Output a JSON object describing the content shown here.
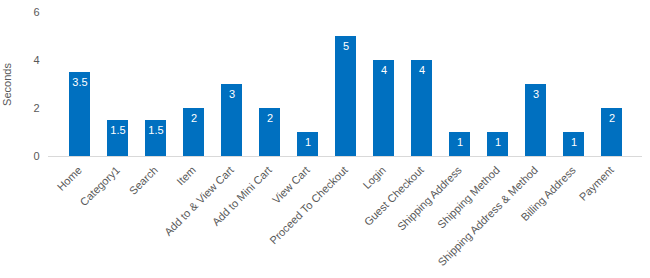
{
  "chart_data": {
    "type": "bar",
    "y_label": "Seconds",
    "categories": [
      "Home",
      "Category1",
      "Search",
      "Item",
      "Add to & View Cart",
      "Add to Mini Cart",
      "View Cart",
      "Proceed To Checkout",
      "Login",
      "Guest Checkout",
      "Shipping Address",
      "Shipping Method",
      "Shipping Address & Method",
      "Billing Address",
      "Payment"
    ],
    "values": [
      3.5,
      1.5,
      1.5,
      2,
      3,
      2,
      1,
      5,
      4,
      4,
      1,
      1,
      3,
      1,
      2
    ],
    "color": "#0070c0",
    "ylim": [
      0,
      6
    ],
    "yticks": [
      0,
      2,
      4,
      6
    ],
    "grid": false,
    "data_labels": true
  }
}
